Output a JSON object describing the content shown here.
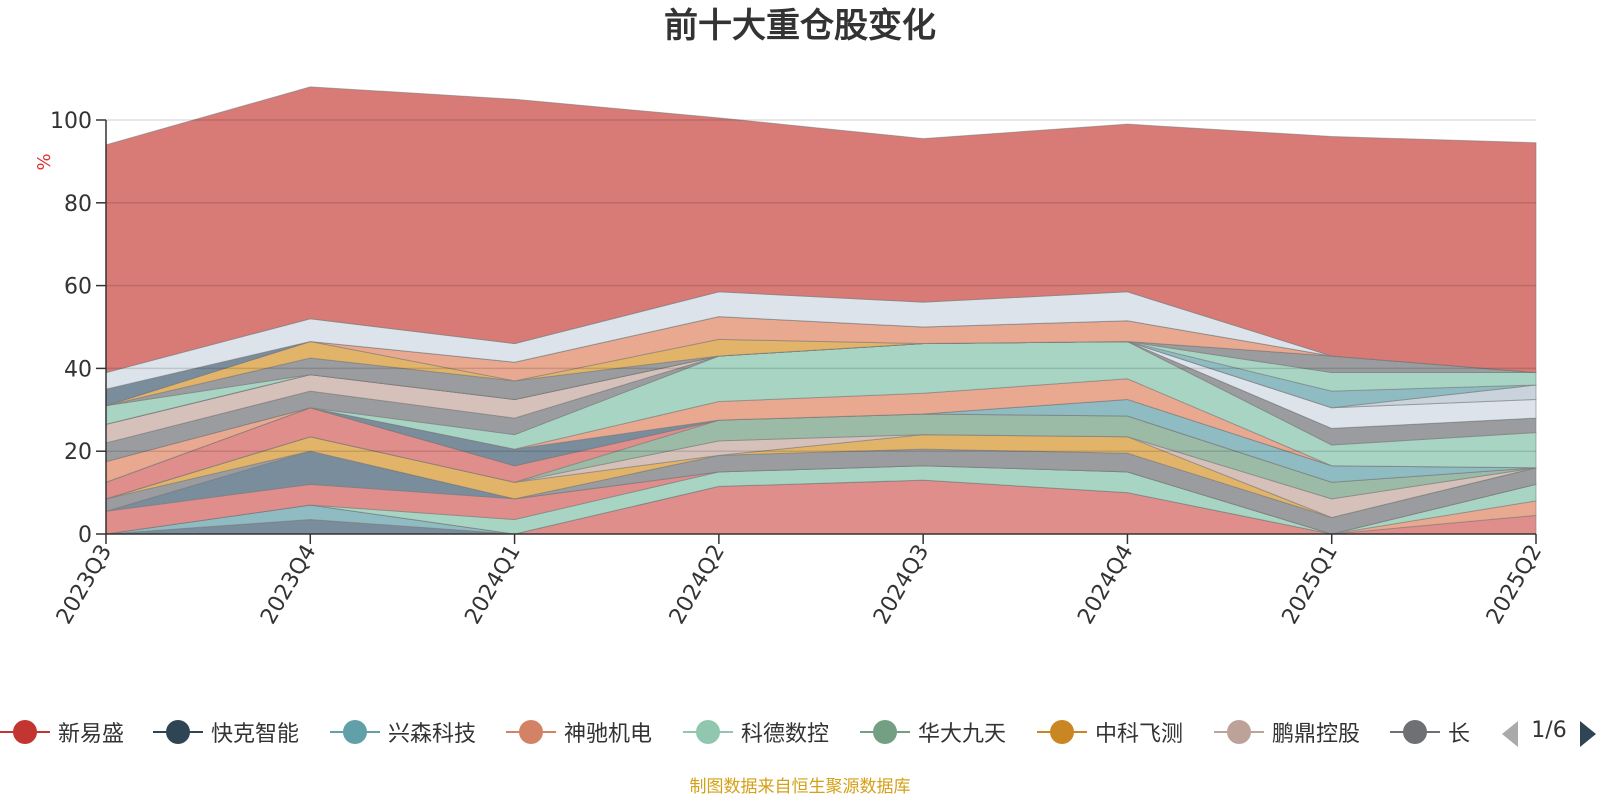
{
  "title": "前十大重仓股变化",
  "source": "制图数据来自恒生聚源数据库",
  "pager": {
    "text": "1/6"
  },
  "legend": [
    {
      "name": "新易盛",
      "color": "#c23531"
    },
    {
      "name": "快克智能",
      "color": "#2f4554"
    },
    {
      "name": "兴森科技",
      "color": "#61a0a8"
    },
    {
      "name": "神驰机电",
      "color": "#d48265"
    },
    {
      "name": "科德数控",
      "color": "#91c7ae"
    },
    {
      "name": "华大九天",
      "color": "#749f83"
    },
    {
      "name": "中科飞测",
      "color": "#ca8622"
    },
    {
      "name": "鹏鼎控股",
      "color": "#bda29a"
    },
    {
      "name": "长",
      "color": "#6e7074"
    }
  ],
  "chart_data": {
    "type": "area",
    "stacked": true,
    "title": "前十大重仓股变化",
    "x": [
      "2023Q3",
      "2023Q4",
      "2024Q1",
      "2024Q2",
      "2024Q3",
      "2024Q4",
      "2025Q1",
      "2025Q2"
    ],
    "ylabel": "%",
    "ylim": [
      0,
      100
    ],
    "yticks": [
      0,
      20,
      40,
      60,
      80,
      100
    ],
    "grid": true,
    "legend_position": "bottom",
    "series": [
      {
        "color": "#7a8d9c",
        "values": [
          0,
          3.5,
          0,
          0,
          0,
          0,
          0,
          0
        ]
      },
      {
        "color": "#8fbcc2",
        "values": [
          0,
          3.5,
          0,
          0,
          0,
          0,
          0,
          0
        ]
      },
      {
        "color": "#e08e8b",
        "values": [
          0,
          0,
          0,
          11.5,
          13,
          10,
          0,
          4.5
        ]
      },
      {
        "color": "#e9a890",
        "values": [
          0,
          0,
          0,
          0,
          0,
          0,
          0,
          3.5
        ]
      },
      {
        "color": "#a8d5c3",
        "values": [
          0,
          0,
          3.5,
          3.5,
          3.5,
          5,
          0,
          4
        ]
      },
      {
        "color": "#e08e8b",
        "values": [
          5.5,
          5,
          5,
          0,
          0,
          0,
          0,
          0
        ]
      },
      {
        "color": "#7a8d9c",
        "values": [
          0,
          8,
          0,
          0,
          0,
          0,
          0,
          0
        ]
      },
      {
        "color": "#9a9c9f",
        "values": [
          3,
          0,
          0,
          4,
          4,
          4.5,
          4,
          4
        ]
      },
      {
        "color": "#e2b46a",
        "values": [
          0,
          3.5,
          4,
          0,
          3.5,
          4,
          0,
          0
        ]
      },
      {
        "color": "#d6c1ba",
        "values": [
          0,
          0,
          0,
          3.5,
          0,
          0,
          4.5,
          0
        ]
      },
      {
        "color": "#9bbba7",
        "values": [
          0,
          0,
          0,
          5,
          5,
          5,
          4,
          0
        ]
      },
      {
        "color": "#e08e8b",
        "values": [
          4,
          7,
          4,
          0,
          0,
          0,
          0,
          0
        ]
      },
      {
        "color": "#8fbcc2",
        "values": [
          0,
          0,
          0,
          0,
          0,
          4,
          4,
          0
        ]
      },
      {
        "color": "#7a8d9c",
        "values": [
          0,
          0,
          4,
          0,
          0,
          0,
          0,
          0
        ]
      },
      {
        "color": "#e9a890",
        "values": [
          5,
          0,
          0,
          4.5,
          5,
          5,
          0,
          0
        ]
      },
      {
        "color": "#a8d5c3",
        "values": [
          0,
          0,
          3.5,
          11,
          12,
          9,
          5,
          8.5
        ]
      },
      {
        "color": "#9a9c9f",
        "values": [
          4.5,
          4,
          4,
          0,
          0,
          0,
          4,
          3.5
        ]
      },
      {
        "color": "#d6c1ba",
        "values": [
          4.5,
          4,
          4.5,
          0,
          0,
          0,
          0,
          0
        ]
      },
      {
        "color": "#dce3ea",
        "values": [
          0,
          0,
          0,
          0,
          0,
          0,
          5,
          4.5
        ]
      },
      {
        "color": "#c9d3dc",
        "values": [
          0,
          0,
          0,
          0,
          0,
          0,
          0,
          3.5
        ]
      },
      {
        "color": "#8fbcc2",
        "values": [
          0,
          0,
          0,
          0,
          0,
          0,
          4,
          0
        ]
      },
      {
        "color": "#a8d5c3",
        "values": [
          4.5,
          0,
          0,
          0,
          0,
          0,
          4.5,
          3
        ]
      },
      {
        "color": "#9a9c9f",
        "values": [
          0,
          4,
          4.5,
          0,
          0,
          0,
          4,
          0
        ]
      },
      {
        "color": "#e2b46a",
        "values": [
          0,
          4,
          0,
          4,
          0,
          0,
          0,
          0
        ]
      },
      {
        "color": "#e9a890",
        "values": [
          0,
          0,
          4.5,
          5.5,
          4,
          5,
          0,
          0
        ]
      },
      {
        "color": "#7a8d9c",
        "values": [
          4,
          0,
          0,
          0,
          0,
          0,
          0,
          0
        ]
      },
      {
        "color": "#dce3ea",
        "values": [
          4,
          5.5,
          4.5,
          6,
          6,
          7,
          0,
          0
        ]
      },
      {
        "color": "#d87a76",
        "values": [
          55,
          56,
          59,
          42,
          39.5,
          40.5,
          53,
          55.5
        ]
      }
    ]
  }
}
